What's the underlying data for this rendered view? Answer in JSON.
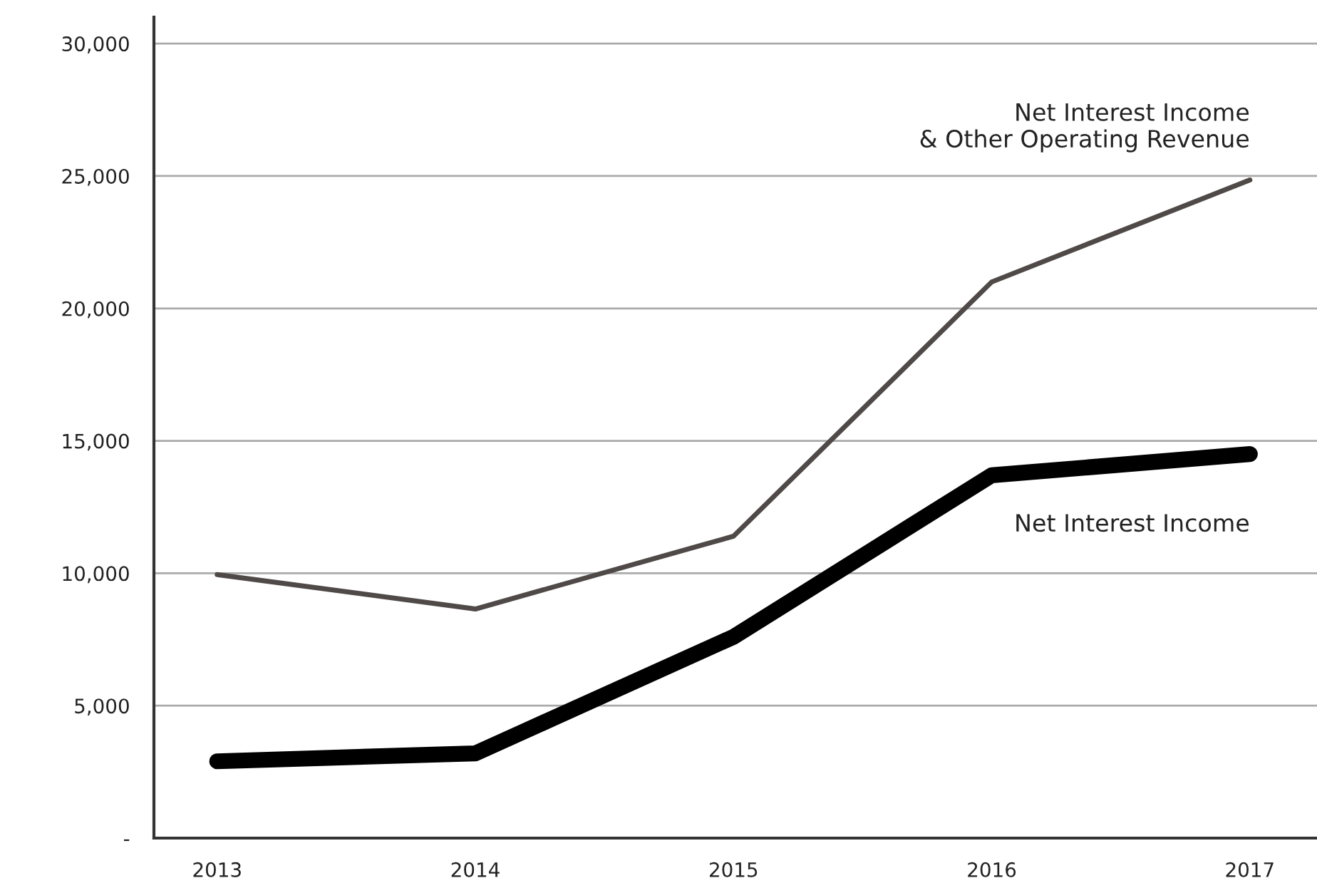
{
  "chart_data": {
    "type": "line",
    "categories": [
      "2013",
      "2014",
      "2015",
      "2016",
      "2017"
    ],
    "series": [
      {
        "name": "Net Interest Income\n& Other Operating Revenue",
        "color": "#4f4a48",
        "values": [
          9950,
          8650,
          11400,
          21000,
          24850
        ]
      },
      {
        "name": "Net Interest Income",
        "color": "#000000",
        "values": [
          2900,
          3200,
          7600,
          13700,
          14500
        ]
      }
    ],
    "ylim": [
      0,
      31000
    ],
    "yticks": [
      {
        "value": 0,
        "label": "-"
      },
      {
        "value": 5000,
        "label": "5,000"
      },
      {
        "value": 10000,
        "label": "10,000"
      },
      {
        "value": 15000,
        "label": "15,000"
      },
      {
        "value": 20000,
        "label": "20,000"
      },
      {
        "value": 25000,
        "label": "25,000"
      },
      {
        "value": 30000,
        "label": "30,000"
      }
    ],
    "grid": "y",
    "legend": false,
    "marker": "none",
    "line_style": "solid"
  }
}
